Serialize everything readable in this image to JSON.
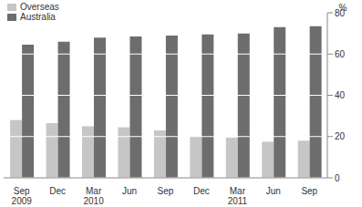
{
  "chart_data": {
    "type": "bar",
    "categories": [
      "Sep 2009",
      "Dec",
      "Mar 2010",
      "Jun",
      "Sep",
      "Dec",
      "Mar 2011",
      "Jun",
      "Sep"
    ],
    "y_label": "%",
    "series": [
      {
        "name": "Overseas",
        "color": "#c6c6c6",
        "values": [
          28,
          26.5,
          25,
          24.5,
          23,
          20,
          19.5,
          17.5,
          18
        ]
      },
      {
        "name": "Australia",
        "color": "#6d6d6d",
        "values": [
          64.5,
          66,
          68,
          68.5,
          69,
          69.5,
          70,
          73,
          73.5
        ]
      }
    ],
    "ylim": [
      0,
      80
    ],
    "yticks": [
      0,
      20,
      40,
      60,
      80
    ],
    "grid": true,
    "legend": "top-left"
  }
}
